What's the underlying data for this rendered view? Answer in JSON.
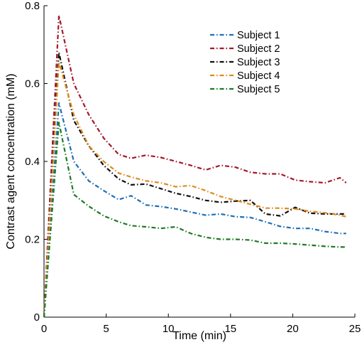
{
  "chart_data": {
    "type": "line",
    "title": "",
    "xlabel": "Time (min)",
    "ylabel": "Contrast agent concentration (mM)",
    "xlim": [
      0,
      25
    ],
    "ylim": [
      0,
      0.8
    ],
    "xticks": [
      0,
      5,
      10,
      15,
      20,
      25
    ],
    "xtick_labels": [
      "0",
      "5",
      "10",
      "15",
      "20",
      "25"
    ],
    "yticks": [
      0,
      0.2,
      0.4,
      0.6,
      0.8
    ],
    "ytick_labels": [
      "0",
      "0.2",
      "0.4",
      "0.6",
      "0.8"
    ],
    "grid": false,
    "legend_position": "top-right",
    "series": [
      {
        "name": "Subject 1",
        "color": "#1f6fb8",
        "x": [
          0,
          1.2,
          2.4,
          3.6,
          4.8,
          6,
          7,
          8.2,
          9.4,
          10.6,
          11.8,
          13,
          14.2,
          15.4,
          16.6,
          17.8,
          19,
          20.2,
          21.4,
          22.6,
          23.8,
          24.3
        ],
        "y": [
          0,
          0.55,
          0.4,
          0.35,
          0.325,
          0.302,
          0.312,
          0.288,
          0.284,
          0.278,
          0.27,
          0.262,
          0.265,
          0.258,
          0.256,
          0.245,
          0.233,
          0.228,
          0.228,
          0.22,
          0.215,
          0.215
        ]
      },
      {
        "name": "Subject 2",
        "color": "#a31a2a",
        "x": [
          0,
          1.2,
          2.4,
          3.6,
          4.8,
          6,
          7,
          8.2,
          9.4,
          10.6,
          11.8,
          13,
          14.2,
          15.4,
          16.6,
          17.8,
          19,
          20.2,
          21.4,
          22.6,
          23.8,
          24.3
        ],
        "y": [
          0,
          0.775,
          0.6,
          0.52,
          0.46,
          0.418,
          0.408,
          0.416,
          0.41,
          0.4,
          0.39,
          0.378,
          0.39,
          0.385,
          0.372,
          0.368,
          0.368,
          0.352,
          0.348,
          0.345,
          0.358,
          0.345
        ]
      },
      {
        "name": "Subject 3",
        "color": "#111111",
        "x": [
          0,
          1.2,
          2.4,
          3.6,
          4.8,
          6,
          7,
          8.2,
          9.4,
          10.6,
          11.8,
          13,
          14.2,
          15.4,
          16.6,
          17.8,
          19,
          20.2,
          21.4,
          22.6,
          23.8,
          24.3
        ],
        "y": [
          0,
          0.68,
          0.505,
          0.44,
          0.39,
          0.355,
          0.34,
          0.342,
          0.33,
          0.318,
          0.31,
          0.3,
          0.295,
          0.298,
          0.3,
          0.265,
          0.26,
          0.282,
          0.267,
          0.265,
          0.265,
          0.265
        ]
      },
      {
        "name": "Subject 4",
        "color": "#e08a1e",
        "x": [
          0,
          1.2,
          2.4,
          3.6,
          4.8,
          6,
          7,
          8.2,
          9.4,
          10.6,
          11.8,
          13,
          14.2,
          15.4,
          16.6,
          17.8,
          19,
          20.2,
          21.4,
          22.6,
          23.8,
          24.3
        ],
        "y": [
          0,
          0.655,
          0.52,
          0.44,
          0.4,
          0.37,
          0.36,
          0.35,
          0.345,
          0.335,
          0.338,
          0.325,
          0.31,
          0.3,
          0.29,
          0.28,
          0.28,
          0.278,
          0.272,
          0.268,
          0.262,
          0.258
        ]
      },
      {
        "name": "Subject 5",
        "color": "#1e7a22",
        "x": [
          0,
          1.2,
          2.4,
          3.6,
          4.8,
          6,
          7,
          8.2,
          9.4,
          10.6,
          11.8,
          13,
          14.2,
          15.4,
          16.6,
          17.8,
          19,
          20.2,
          21.4,
          22.6,
          23.8,
          24.3
        ],
        "y": [
          0,
          0.5,
          0.315,
          0.285,
          0.26,
          0.245,
          0.235,
          0.232,
          0.228,
          0.232,
          0.215,
          0.205,
          0.2,
          0.2,
          0.198,
          0.19,
          0.19,
          0.188,
          0.185,
          0.182,
          0.18,
          0.18
        ]
      }
    ]
  }
}
